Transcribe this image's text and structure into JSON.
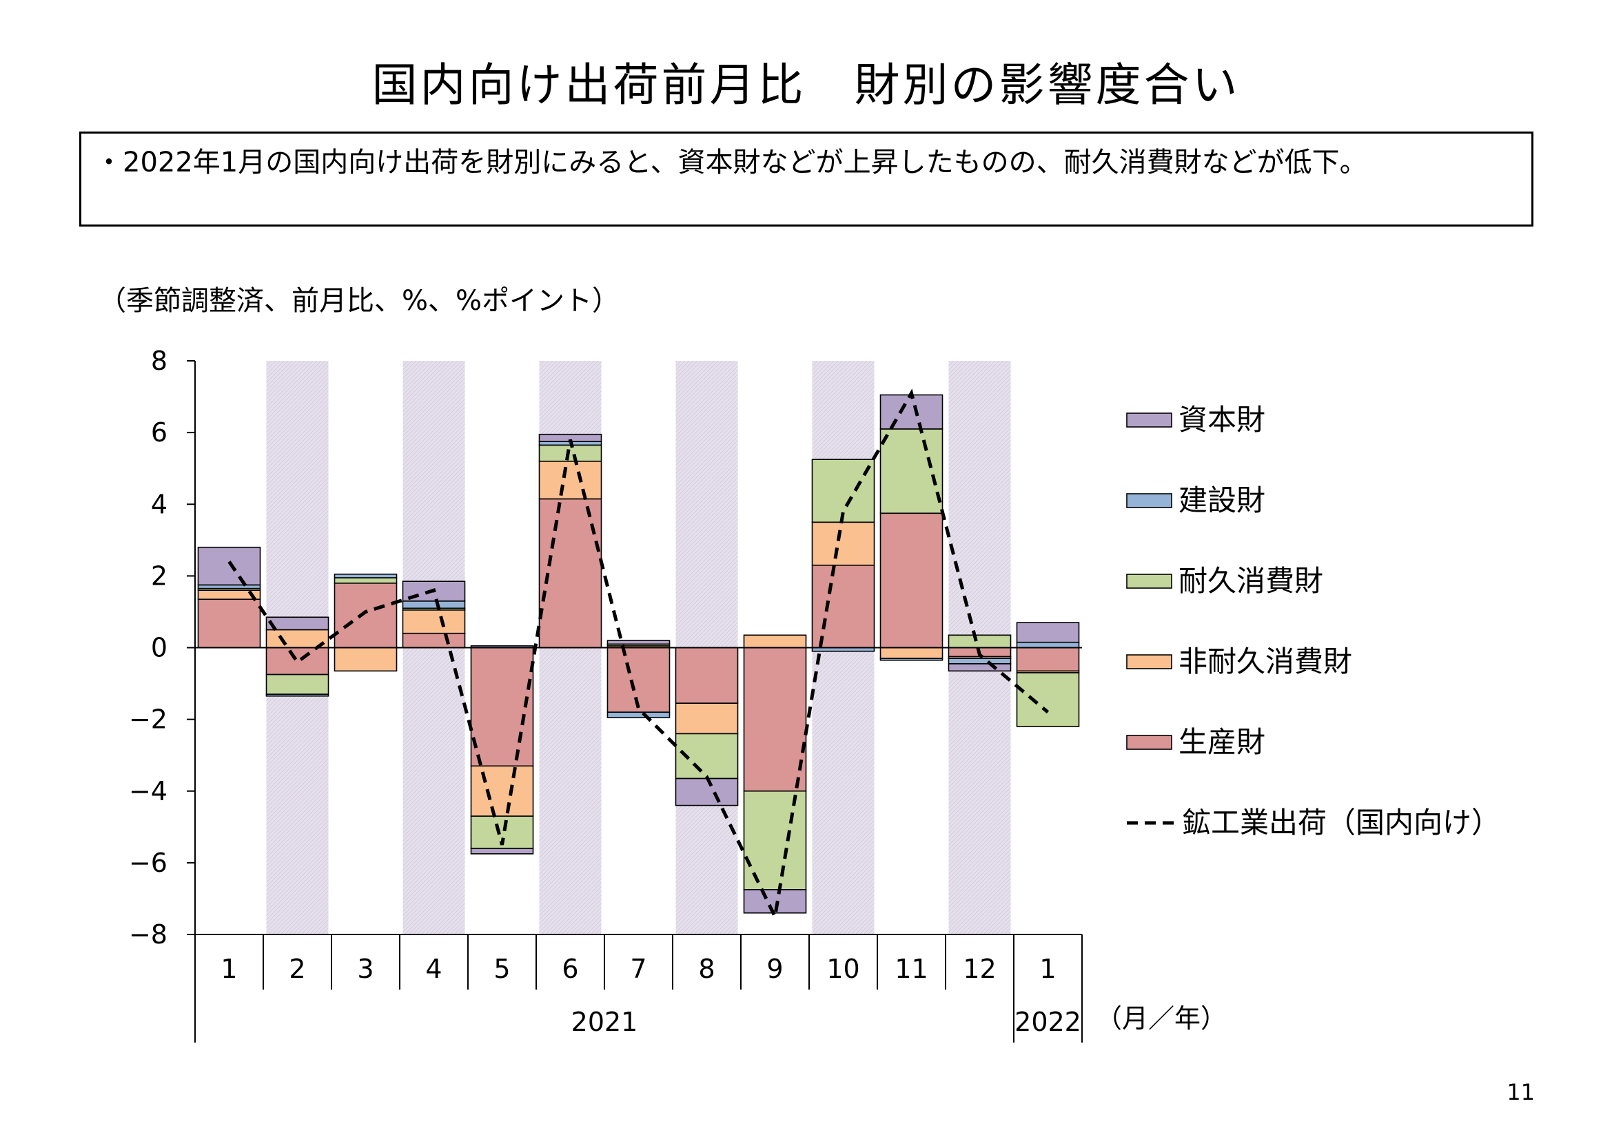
{
  "title": "国内向け出荷前月比　財別の影響度合い",
  "summary": "・2022年1月の国内向け出荷を財別にみると、資本財などが上昇したものの、耐久消費財などが低下。",
  "page_number": "11",
  "colors": {
    "capital": "#b3a2c7",
    "construction": "#95b3d7",
    "durable": "#c3d69b",
    "nondurable": "#fac090",
    "production": "#d99694",
    "shade": "#e6e0ec"
  },
  "chart_data": {
    "type": "bar",
    "stacked": true,
    "unit_label": "（季節調整済、前月比、%、%ポイント）",
    "xlabel": "（月／年）",
    "categories": [
      "1",
      "2",
      "3",
      "4",
      "5",
      "6",
      "7",
      "8",
      "9",
      "10",
      "11",
      "12",
      "1"
    ],
    "year_labels": [
      {
        "label": "2021",
        "from": 0,
        "to": 11
      },
      {
        "label": "2022",
        "from": 12,
        "to": 12
      }
    ],
    "shaded_months": [
      1,
      3,
      5,
      7,
      9,
      11
    ],
    "ylim": [
      -8,
      8
    ],
    "yticks": [
      8,
      6,
      4,
      2,
      0,
      -2,
      -4,
      -6,
      -8
    ],
    "ytick_labels": [
      "8",
      "6",
      "4",
      "2",
      "0",
      "−2",
      "−4",
      "−6",
      "−8"
    ],
    "series": [
      {
        "key": "production",
        "name": "生産財",
        "values": [
          1.35,
          -0.75,
          1.8,
          0.4,
          -3.3,
          4.15,
          -1.8,
          -1.55,
          -4.0,
          2.3,
          3.75,
          -0.25,
          -0.65
        ]
      },
      {
        "key": "nondurable",
        "name": "非耐久消費財",
        "values": [
          0.25,
          0.5,
          -0.65,
          0.65,
          -1.4,
          1.05,
          0.05,
          -0.85,
          0.35,
          1.2,
          -0.3,
          -0.05,
          -0.05
        ]
      },
      {
        "key": "durable",
        "name": "耐久消費財",
        "values": [
          0.05,
          -0.55,
          0.15,
          0.05,
          -0.9,
          0.45,
          0.05,
          -1.25,
          -2.75,
          1.75,
          2.35,
          0.35,
          -1.5
        ]
      },
      {
        "key": "construction",
        "name": "建設財",
        "values": [
          0.1,
          -0.05,
          0.1,
          0.2,
          0.05,
          0.1,
          -0.15,
          0.0,
          0.0,
          -0.1,
          -0.05,
          -0.15,
          0.15
        ]
      },
      {
        "key": "capital",
        "name": "資本財",
        "values": [
          1.05,
          0.35,
          0.0,
          0.55,
          -0.15,
          0.2,
          0.1,
          -0.75,
          -0.65,
          0.0,
          0.95,
          -0.2,
          0.55
        ]
      }
    ],
    "line": {
      "name": "鉱工業出荷（国内向け）",
      "values": [
        2.4,
        -0.4,
        1.0,
        1.6,
        -5.5,
        5.8,
        -1.7,
        -3.6,
        -7.5,
        3.8,
        7.1,
        -0.2,
        -1.8
      ]
    },
    "legend_order": [
      "capital",
      "construction",
      "durable",
      "nondurable",
      "production",
      "line"
    ]
  }
}
